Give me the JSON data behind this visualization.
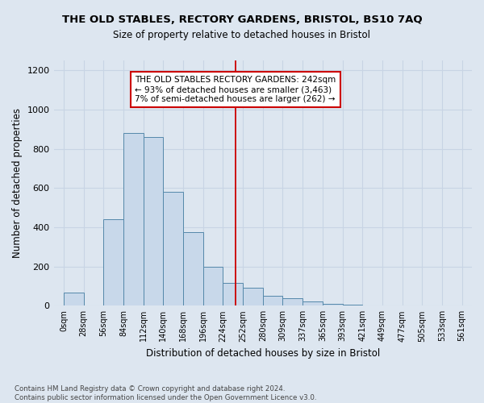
{
  "title": "THE OLD STABLES, RECTORY GARDENS, BRISTOL, BS10 7AQ",
  "subtitle": "Size of property relative to detached houses in Bristol",
  "xlabel": "Distribution of detached houses by size in Bristol",
  "ylabel": "Number of detached properties",
  "bar_values": [
    65,
    0,
    440,
    880,
    860,
    580,
    375,
    200,
    115,
    90,
    50,
    38,
    22,
    10,
    4,
    2,
    1,
    0,
    0,
    0
  ],
  "bin_labels": [
    "0sqm",
    "28sqm",
    "56sqm",
    "84sqm",
    "112sqm",
    "140sqm",
    "168sqm",
    "196sqm",
    "224sqm",
    "252sqm",
    "280sqm",
    "309sqm",
    "337sqm",
    "365sqm",
    "393sqm",
    "421sqm",
    "449sqm",
    "477sqm",
    "505sqm",
    "533sqm",
    "561sqm"
  ],
  "bar_color": "#c8d8ea",
  "bar_edge_color": "#5588aa",
  "grid_color": "#c8d4e4",
  "vline_x": 242,
  "vline_color": "#cc0000",
  "ylim": [
    0,
    1250
  ],
  "yticks": [
    0,
    200,
    400,
    600,
    800,
    1000,
    1200
  ],
  "annotation_text": "THE OLD STABLES RECTORY GARDENS: 242sqm\n← 93% of detached houses are smaller (3,463)\n7% of semi-detached houses are larger (262) →",
  "footnote": "Contains HM Land Registry data © Crown copyright and database right 2024.\nContains public sector information licensed under the Open Government Licence v3.0.",
  "bg_color": "#dde6f0"
}
